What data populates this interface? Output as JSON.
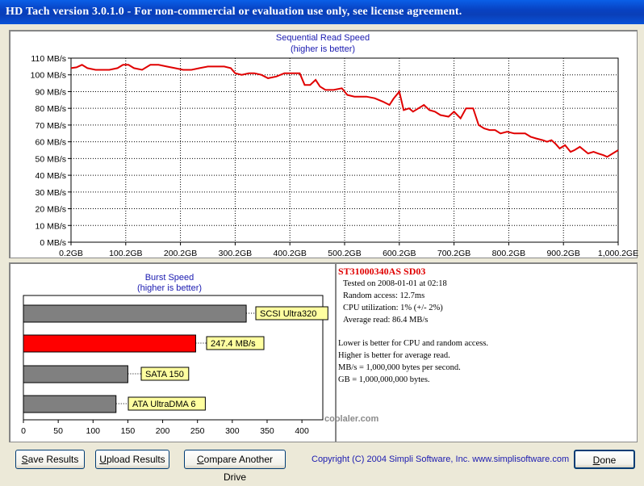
{
  "window": {
    "title": "HD Tach version 3.0.1.0  - For non-commercial or evaluation use only, see license agreement."
  },
  "seq_chart": {
    "title": "Sequential Read Speed",
    "subtitle": "(higher is better)",
    "y_ticks": [
      "0 MB/s",
      "10 MB/s",
      "20 MB/s",
      "30 MB/s",
      "40 MB/s",
      "50 MB/s",
      "60 MB/s",
      "70 MB/s",
      "80 MB/s",
      "90 MB/s",
      "100 MB/s",
      "110 MB/s"
    ],
    "x_ticks": [
      "0.2GB",
      "100.2GB",
      "200.2GB",
      "300.2GB",
      "400.2GB",
      "500.2GB",
      "600.2GB",
      "700.2GB",
      "800.2GB",
      "900.2GB",
      "1,000.2GE"
    ]
  },
  "burst_chart": {
    "title": "Burst Speed",
    "subtitle": "(higher is better)",
    "x_ticks": [
      "0",
      "50",
      "100",
      "150",
      "200",
      "250",
      "300",
      "350",
      "400"
    ]
  },
  "chart_data": [
    {
      "type": "line",
      "title": "Sequential Read Speed",
      "subtitle": "(higher is better)",
      "xlabel": "",
      "ylabel": "",
      "xlim": [
        0,
        1000
      ],
      "ylim": [
        0,
        110
      ],
      "grid": true,
      "series": [
        {
          "color": "#e00000",
          "x": [
            0,
            10,
            20,
            30,
            45,
            60,
            70,
            85,
            95,
            105,
            115,
            130,
            145,
            160,
            175,
            190,
            205,
            220,
            235,
            250,
            265,
            280,
            292,
            300,
            312,
            325,
            335,
            348,
            360,
            375,
            390,
            400,
            410,
            418,
            427,
            437,
            447,
            455,
            465,
            480,
            495,
            505,
            518,
            530,
            540,
            555,
            570,
            582,
            590,
            600,
            608,
            618,
            625,
            635,
            645,
            655,
            665,
            675,
            690,
            700,
            712,
            722,
            735,
            745,
            755,
            765,
            775,
            785,
            797,
            810,
            820,
            830,
            840,
            850,
            862,
            870,
            878,
            885,
            893,
            903,
            913,
            920,
            930,
            945,
            955,
            963,
            973,
            980,
            990,
            1000
          ],
          "y": [
            104,
            104.5,
            106,
            104,
            103,
            103,
            103,
            104,
            106,
            106,
            104,
            103,
            106,
            106,
            105,
            104,
            103,
            103,
            104,
            105,
            105,
            105,
            104,
            101,
            100,
            101,
            101,
            100,
            98,
            99,
            101,
            101,
            101,
            101,
            94,
            94,
            97,
            93,
            91,
            91,
            92,
            88,
            87,
            87,
            87,
            86,
            84,
            82,
            86,
            90,
            79,
            80,
            78,
            80,
            82,
            79,
            78,
            76,
            75,
            78,
            74,
            80,
            80,
            70,
            68,
            67,
            67,
            65,
            66,
            65,
            65,
            65,
            63,
            62,
            61,
            60,
            61,
            59,
            56,
            58,
            54,
            55,
            57,
            53,
            54,
            53,
            52,
            51,
            53,
            55
          ]
        }
      ]
    },
    {
      "type": "bar",
      "title": "Burst Speed",
      "subtitle": "(higher is better)",
      "xlim": [
        0,
        430
      ],
      "orientation": "horizontal",
      "bars": [
        {
          "label": "SCSI Ultra320",
          "value": 320,
          "color": "#808080"
        },
        {
          "label": "247.4 MB/s",
          "value": 247.4,
          "color": "#ff0000"
        },
        {
          "label": "SATA 150",
          "value": 150,
          "color": "#808080"
        },
        {
          "label": "ATA UltraDMA 6",
          "value": 133,
          "color": "#808080"
        }
      ]
    }
  ],
  "results": {
    "drive": "ST31000340AS SD03",
    "lines": [
      "Tested on 2008-01-01 at 02:18",
      "Random access: 12.7ms",
      "CPU utilization: 1% (+/- 2%)",
      "Average read: 86.4 MB/s"
    ],
    "notes": [
      "Lower is better for CPU and random access.",
      "Higher is better for average read.",
      "MB/s = 1,000,000 bytes per second.",
      "GB = 1,000,000,000 bytes."
    ]
  },
  "buttons": {
    "save": {
      "mnemonic": "S",
      "rest": "ave Results"
    },
    "upload": {
      "mnemonic": "U",
      "rest": "pload Results"
    },
    "compare": {
      "mnemonic": "C",
      "rest": "ompare Another Drive"
    },
    "done": {
      "mnemonic": "D",
      "rest": "one"
    }
  },
  "copyright": "Copyright (C) 2004 Simpli Software, Inc. www.simplisoftware.com",
  "watermark": "coolaler.com"
}
